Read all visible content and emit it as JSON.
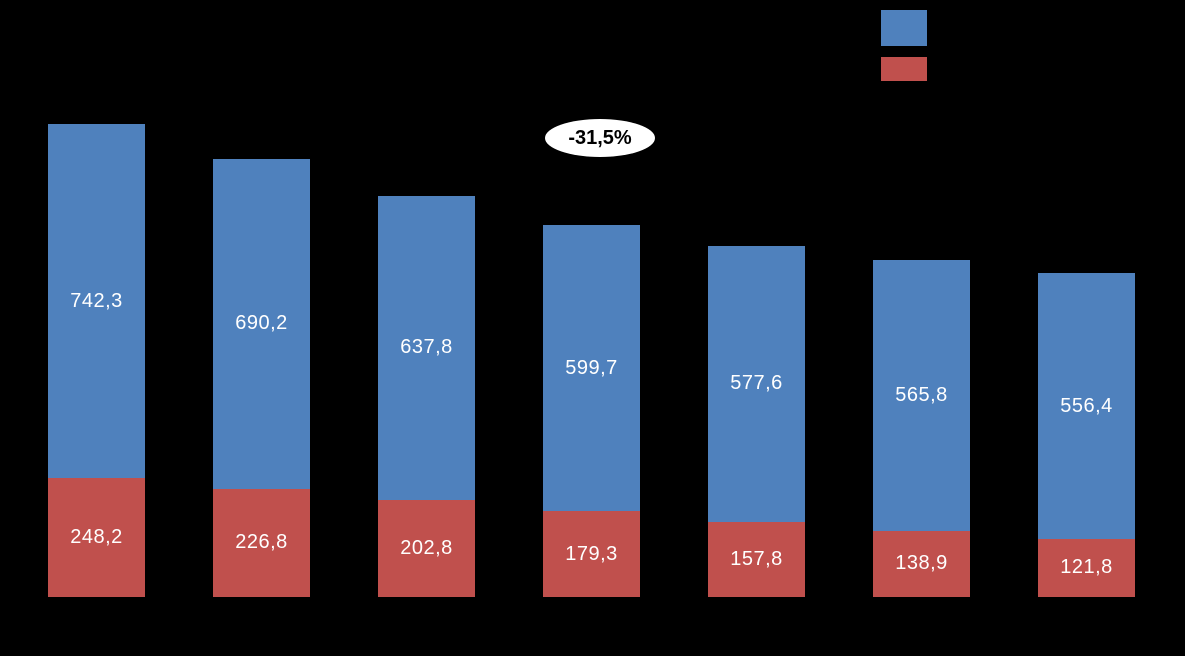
{
  "background_color": "#000000",
  "annotation": {
    "text": "-31,5%",
    "bg_color": "#ffffff",
    "text_color": "#000000"
  },
  "legend": {
    "position": "top-right",
    "items": [
      {
        "swatch_color": "#4f81bd"
      },
      {
        "swatch_color": "#c0504d"
      }
    ]
  },
  "chart_data": {
    "type": "bar",
    "stacked": true,
    "orientation": "vertical",
    "grid": false,
    "axes_visible": false,
    "value_format": "comma-decimal",
    "label_color": "#ffffff",
    "series": [
      {
        "name": "blue-top-segment",
        "color": "#4f81bd",
        "values": [
          742.3,
          690.2,
          637.8,
          599.7,
          577.6,
          565.8,
          556.4
        ],
        "labels": [
          "742,3",
          "690,2",
          "637,8",
          "599,7",
          "577,6",
          "565,8",
          "556,4"
        ]
      },
      {
        "name": "red-bottom-segment",
        "color": "#c0504d",
        "values": [
          248.2,
          226.8,
          202.8,
          179.3,
          157.8,
          138.9,
          121.8
        ],
        "labels": [
          "248,2",
          "226,8",
          "202,8",
          "179,3",
          "157,8",
          "138,9",
          "121,8"
        ]
      }
    ],
    "totals": [
      990.5,
      917.0,
      840.6,
      779.0,
      735.4,
      704.7,
      678.2
    ]
  }
}
